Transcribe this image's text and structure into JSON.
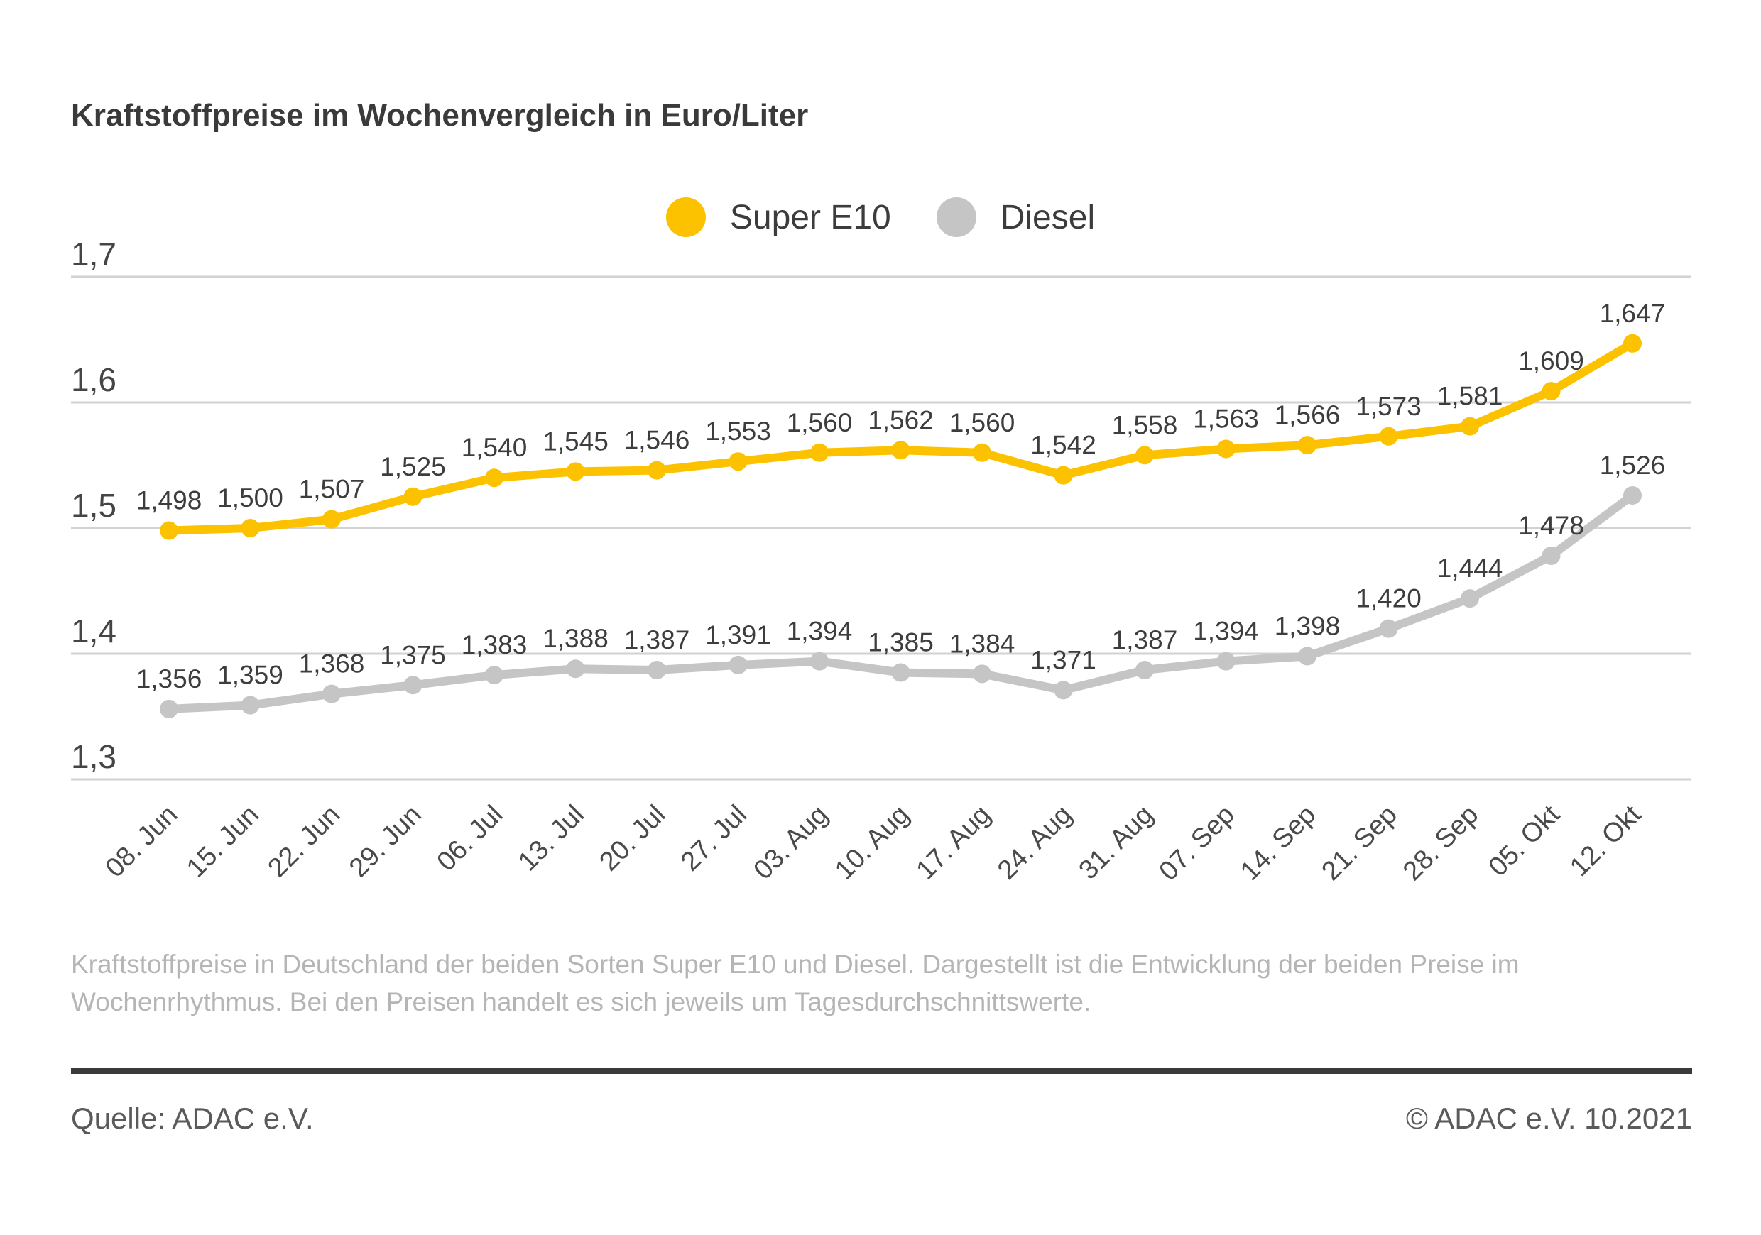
{
  "title": "Kraftstoffpreise im Wochenvergleich in Euro/Liter",
  "legend": {
    "super_e10": "Super E10",
    "diesel": "Diesel"
  },
  "chart_data": {
    "type": "line",
    "title": "Kraftstoffpreise im Wochenvergleich in Euro/Liter",
    "unit": "Euro/Liter",
    "categories": [
      "08. Jun",
      "15. Jun",
      "22. Jun",
      "29. Jun",
      "06. Jul",
      "13. Jul",
      "20. Jul",
      "27. Jul",
      "03. Aug",
      "10. Aug",
      "17. Aug",
      "24. Aug",
      "31. Aug",
      "07. Sep",
      "14. Sep",
      "21. Sep",
      "28. Sep",
      "05. Okt",
      "12. Okt"
    ],
    "series": [
      {
        "name": "Super E10",
        "color": "#FCC200",
        "values": [
          1.498,
          1.5,
          1.507,
          1.525,
          1.54,
          1.545,
          1.546,
          1.553,
          1.56,
          1.562,
          1.56,
          1.542,
          1.558,
          1.563,
          1.566,
          1.573,
          1.581,
          1.609,
          1.647
        ]
      },
      {
        "name": "Diesel",
        "color": "#C5C5C5",
        "values": [
          1.356,
          1.359,
          1.368,
          1.375,
          1.383,
          1.388,
          1.387,
          1.391,
          1.394,
          1.385,
          1.384,
          1.371,
          1.387,
          1.394,
          1.398,
          1.42,
          1.444,
          1.478,
          1.526
        ]
      }
    ],
    "y_ticks": [
      {
        "label": "1,7",
        "value": 1.7
      },
      {
        "label": "1,6",
        "value": 1.6
      },
      {
        "label": "1,5",
        "value": 1.5
      },
      {
        "label": "1,4",
        "value": 1.4
      },
      {
        "label": "1,3",
        "value": 1.3
      }
    ],
    "ylim": [
      1.3,
      1.7
    ],
    "grid": "horizontal",
    "grid_color": "#D2D2D2",
    "label_color": "#3d3d3d",
    "tick_color": "#4a4a4a",
    "legend_position": "top"
  },
  "footer": {
    "description_lines": [
      "Kraftstoffpreise in Deutschland der beiden Sorten Super E10 und Diesel. Dargestellt ist die Entwicklung der beiden Preise im",
      "Wochenrhythmus. Bei den Preisen handelt es sich jeweils um Tagesdurchschnittswerte."
    ],
    "source": "Quelle: ADAC e.V.",
    "copyright": "© ADAC e.V. 10.2021"
  }
}
